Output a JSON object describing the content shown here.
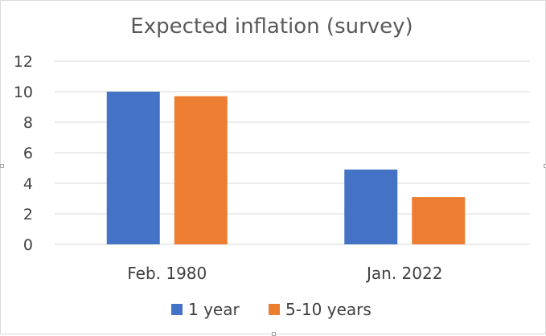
{
  "colors": {
    "series_1": "#4472c4",
    "series_2": "#ed7d31",
    "grid": "#d9d9d9",
    "text": "#404040",
    "title": "#595959"
  },
  "chart_data": {
    "type": "bar",
    "title": "Expected inflation (survey)",
    "xlabel": "",
    "ylabel": "",
    "categories": [
      "Feb. 1980",
      "Jan. 2022"
    ],
    "series": [
      {
        "name": "1 year",
        "values": [
          10.0,
          4.9
        ]
      },
      {
        "name": "5-10 years",
        "values": [
          9.7,
          3.1
        ]
      }
    ],
    "ylim": [
      0,
      12
    ],
    "yticks": [
      "0",
      "2",
      "4",
      "6",
      "8",
      "10",
      "12"
    ],
    "grid": true,
    "legend_position": "bottom"
  }
}
